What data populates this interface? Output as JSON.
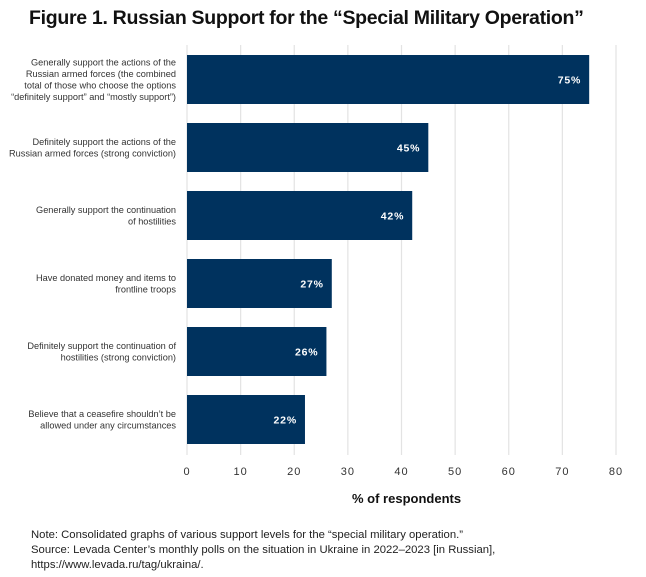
{
  "title": "Figure 1. Russian Support for the “Special Military Operation”",
  "chart_data": {
    "type": "bar",
    "orientation": "horizontal",
    "title": "Figure 1. Russian Support for the “Special Military Operation”",
    "xlabel": "% of respondents",
    "ylabel": "",
    "xlim": [
      0,
      80
    ],
    "xticks": [
      0,
      10,
      20,
      30,
      40,
      50,
      60,
      70,
      80
    ],
    "grid": "vertical",
    "bar_color": "#00325e",
    "categories": [
      [
        "Generally support the actions of the",
        "Russian armed forces (the combined",
        "total of those who choose the options",
        "“definitely support” and “mostly support”)"
      ],
      [
        "Definitely support the actions of the",
        "Russian armed forces (strong conviction)"
      ],
      [
        "Generally support the continuation",
        "of hostilities"
      ],
      [
        "Have donated money and items to",
        "frontline troops"
      ],
      [
        "Definitely support the continuation of",
        "hostilities (strong conviction)"
      ],
      [
        "Believe that a ceasefire shouldn’t be",
        "allowed under any circumstances"
      ]
    ],
    "values": [
      75,
      45,
      42,
      27,
      26,
      22
    ],
    "value_labels": [
      "75%",
      "45%",
      "42%",
      "27%",
      "26%",
      "22%"
    ]
  },
  "notes": {
    "line1": "Note: Consolidated graphs of various support levels for the “special military operation.”",
    "line2": "Source: Levada Center’s monthly polls on the situation in Ukraine in 2022–2023 [in Russian],",
    "line3": "https://www.levada.ru/tag/ukraina/."
  }
}
